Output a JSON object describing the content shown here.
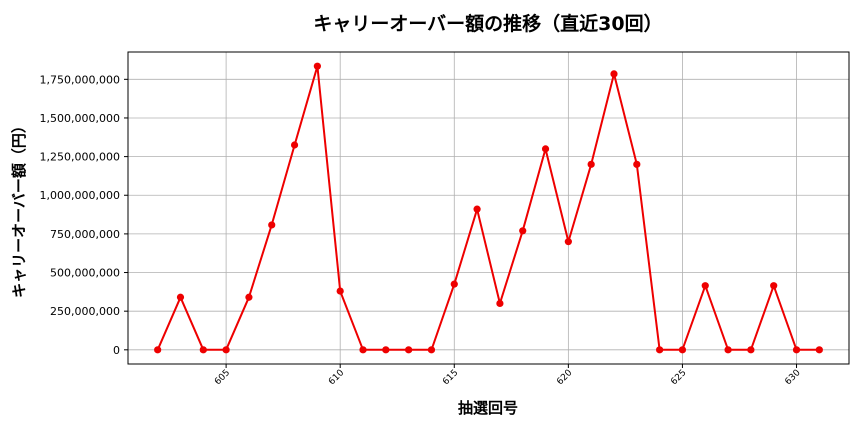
{
  "chart_data": {
    "type": "line",
    "title": "キャリーオーバー額の推移（直近30回）",
    "xlabel": "抽選回号",
    "ylabel": "キャリーオーバー額（円）",
    "x": [
      602,
      603,
      604,
      605,
      606,
      607,
      608,
      609,
      610,
      611,
      612,
      613,
      614,
      615,
      616,
      617,
      618,
      619,
      620,
      621,
      622,
      623,
      624,
      625,
      626,
      627,
      628,
      629,
      630,
      631
    ],
    "series": [
      {
        "values": [
          0,
          340000000,
          0,
          0,
          340000000,
          808000000,
          1325000000,
          1835000000,
          380000000,
          0,
          0,
          0,
          0,
          425000000,
          910000000,
          300000000,
          770000000,
          1300000000,
          700000000,
          1200000000,
          1785000000,
          1200000000,
          0,
          0,
          415000000,
          0,
          0,
          415000000,
          0,
          0
        ],
        "color": "#ee0000"
      }
    ],
    "xticks": [
      605,
      610,
      615,
      620,
      625,
      630
    ],
    "xtick_labels": [
      "605",
      "610",
      "615",
      "620",
      "625",
      "630"
    ],
    "yticks": [
      0,
      250000000,
      500000000,
      750000000,
      1000000000,
      1250000000,
      1500000000,
      1750000000
    ],
    "ytick_labels": [
      "0",
      "250,000,000",
      "500,000,000",
      "750,000,000",
      "1,000,000,000",
      "1,250,000,000",
      "1,500,000,000",
      "1,750,000,000"
    ],
    "xlim": [
      600.7,
      632.3
    ],
    "ylim": [
      -91750000,
      1926750000
    ],
    "grid": true,
    "legend": "none"
  }
}
